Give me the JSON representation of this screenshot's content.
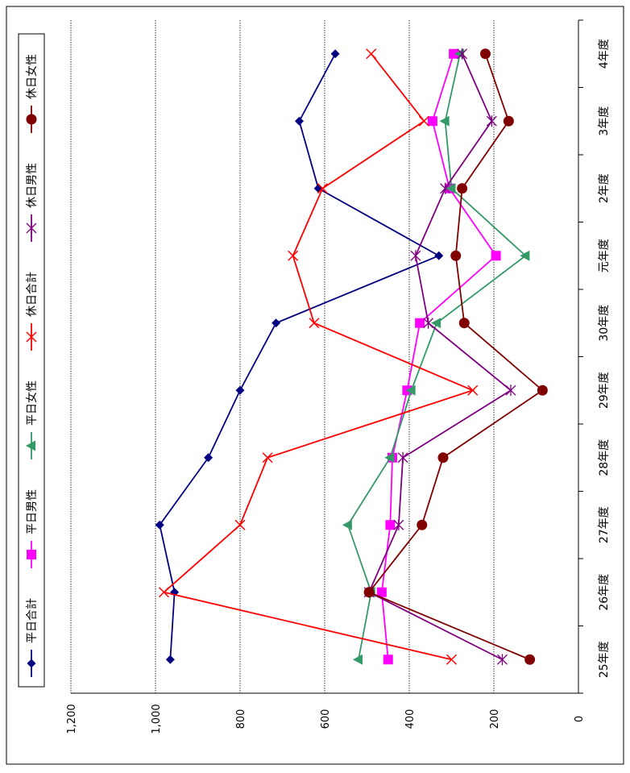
{
  "chart_data": {
    "type": "line",
    "title": "",
    "xlabel": "",
    "ylabel": "",
    "categories": [
      "25年度",
      "26年度",
      "27年度",
      "28年度",
      "29年度",
      "30年度",
      "元年度",
      "2年度",
      "3年度",
      "4年度"
    ],
    "ylim": [
      0,
      1200
    ],
    "yticks": [
      "0",
      "200",
      "400",
      "600",
      "800",
      "1,000",
      "1,200"
    ],
    "grid": true,
    "legend_placement": "top",
    "series": [
      {
        "name": "平日合計",
        "color": "#000080",
        "marker": "diamond",
        "values": [
          965,
          955,
          990,
          875,
          800,
          715,
          330,
          615,
          660,
          575
        ]
      },
      {
        "name": "平日男性",
        "color": "#ff00ff",
        "marker": "square",
        "values": [
          450,
          465,
          445,
          440,
          405,
          375,
          195,
          305,
          345,
          295
        ]
      },
      {
        "name": "平日女性",
        "color": "#339966",
        "marker": "triangle",
        "values": [
          520,
          490,
          545,
          445,
          395,
          335,
          125,
          300,
          315,
          280
        ]
      },
      {
        "name": "休日合計",
        "color": "#ff0000",
        "marker": "x",
        "values": [
          300,
          980,
          800,
          735,
          250,
          625,
          675,
          605,
          365,
          490
        ]
      },
      {
        "name": "休日男性",
        "color": "#800080",
        "marker": "star",
        "values": [
          180,
          495,
          425,
          415,
          160,
          355,
          385,
          315,
          205,
          275
        ]
      },
      {
        "name": "休日女性",
        "color": "#800000",
        "marker": "circle",
        "values": [
          115,
          495,
          370,
          320,
          85,
          270,
          290,
          275,
          165,
          220
        ]
      }
    ]
  }
}
